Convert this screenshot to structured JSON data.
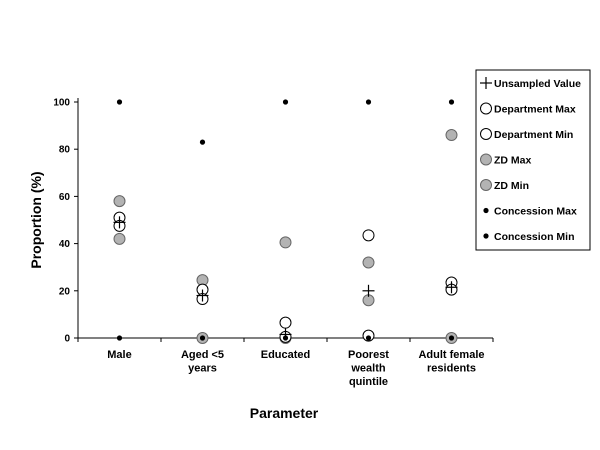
{
  "chart_data": {
    "type": "scatter",
    "title": "",
    "xlabel": "Parameter",
    "ylabel": "Proportion (%)",
    "ylim": [
      0,
      100
    ],
    "yticks": [
      "0",
      "20",
      "40",
      "60",
      "80",
      "100"
    ],
    "grid": false,
    "legend_position": "right",
    "categories": [
      [
        "Male"
      ],
      [
        "Aged <5",
        "years"
      ],
      [
        "Educated"
      ],
      [
        "Poorest",
        "wealth",
        "quintile"
      ],
      [
        "Adult female",
        "residents"
      ]
    ],
    "series": [
      {
        "name": "Unsampled Value",
        "marker": "plus",
        "color": "#000000",
        "values": [
          49,
          18,
          1.5,
          20,
          21.5
        ]
      },
      {
        "name": "Department Max",
        "marker": "circle",
        "fill": "#ffffff",
        "stroke": "#000000",
        "values": [
          51,
          20.5,
          6.5,
          43.5,
          23.5
        ]
      },
      {
        "name": "Department Min",
        "marker": "circle",
        "fill": "#ffffff",
        "stroke": "#000000",
        "values": [
          47.5,
          16.5,
          0.5,
          1,
          20.5
        ]
      },
      {
        "name": "ZD Max",
        "marker": "circle",
        "fill": "#b3b3b3",
        "stroke": "#666666",
        "values": [
          58,
          24.5,
          40.5,
          32,
          86
        ]
      },
      {
        "name": "ZD Min",
        "marker": "circle",
        "fill": "#b3b3b3",
        "stroke": "#666666",
        "values": [
          42,
          0,
          0,
          16,
          0
        ]
      },
      {
        "name": "Concession Max",
        "marker": "dot",
        "color": "#000000",
        "values": [
          100,
          83,
          100,
          100,
          100
        ]
      },
      {
        "name": "Concession Min",
        "marker": "dot",
        "color": "#000000",
        "values": [
          0,
          0,
          0,
          0,
          0
        ]
      }
    ]
  }
}
